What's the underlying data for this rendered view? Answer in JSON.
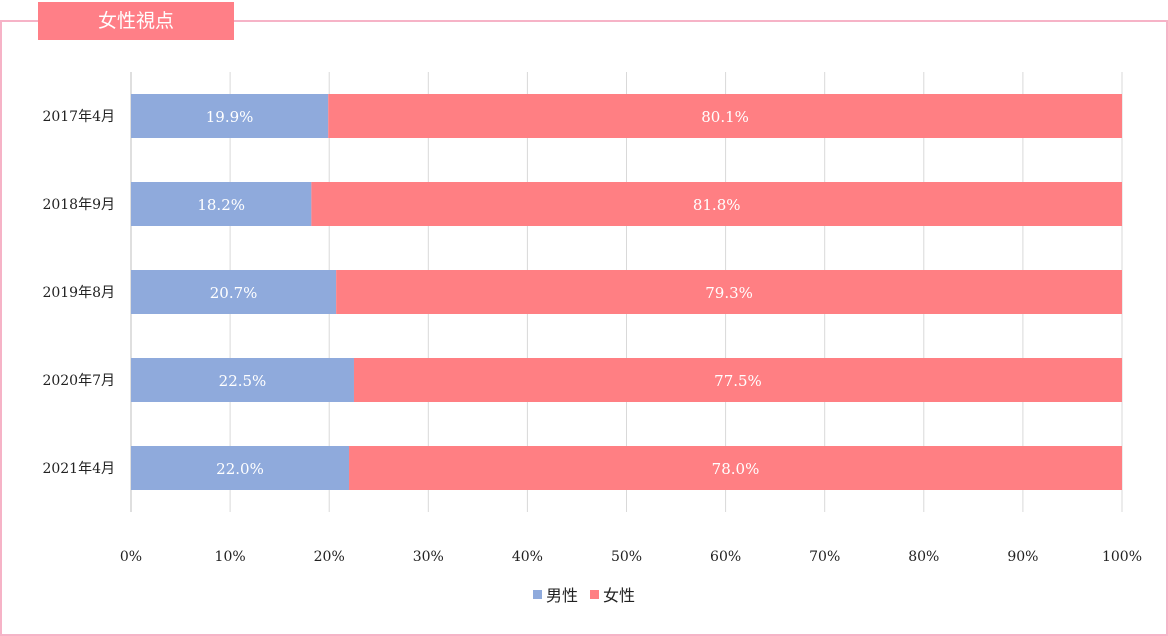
{
  "badge": {
    "title": "女性視点"
  },
  "chart_data": {
    "type": "bar",
    "orientation": "horizontal",
    "stacked": true,
    "categories": [
      "2017年4月",
      "2018年9月",
      "2019年8月",
      "2020年7月",
      "2021年4月"
    ],
    "series": [
      {
        "name": "男性",
        "values": [
          19.9,
          18.2,
          20.7,
          22.5,
          22.0
        ],
        "labels": [
          "19.9%",
          "18.2%",
          "20.7%",
          "22.5%",
          "22.0%"
        ],
        "color": "#8faadc"
      },
      {
        "name": "女性",
        "values": [
          80.1,
          81.8,
          79.3,
          77.5,
          78.0
        ],
        "labels": [
          "80.1%",
          "81.8%",
          "79.3%",
          "77.5%",
          "78.0%"
        ],
        "color": "#ff7f83"
      }
    ],
    "xlim": [
      0,
      100
    ],
    "x_ticks": [
      "0%",
      "10%",
      "20%",
      "30%",
      "40%",
      "50%",
      "60%",
      "70%",
      "80%",
      "90%",
      "100%"
    ],
    "grid": true,
    "legend": "bottom-center",
    "title": "",
    "xlabel": "",
    "ylabel": ""
  }
}
